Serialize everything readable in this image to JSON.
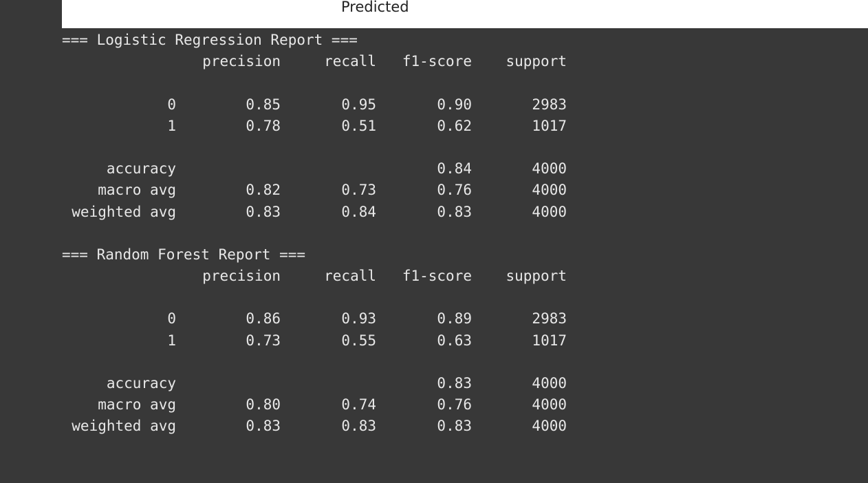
{
  "plot": {
    "axis_label": "Predicted"
  },
  "columns": {
    "precision": "precision",
    "recall": "recall",
    "f1": "f1-score",
    "support": "support"
  },
  "reports": [
    {
      "title": "=== Logistic Regression Report ===",
      "classes": [
        {
          "label": "0",
          "precision": "0.85",
          "recall": "0.95",
          "f1": "0.90",
          "support": "2983"
        },
        {
          "label": "1",
          "precision": "0.78",
          "recall": "0.51",
          "f1": "0.62",
          "support": "1017"
        }
      ],
      "accuracy": {
        "label": "accuracy",
        "f1": "0.84",
        "support": "4000"
      },
      "macro": {
        "label": "macro avg",
        "precision": "0.82",
        "recall": "0.73",
        "f1": "0.76",
        "support": "4000"
      },
      "weighted": {
        "label": "weighted avg",
        "precision": "0.83",
        "recall": "0.84",
        "f1": "0.83",
        "support": "4000"
      }
    },
    {
      "title": "=== Random Forest Report ===",
      "classes": [
        {
          "label": "0",
          "precision": "0.86",
          "recall": "0.93",
          "f1": "0.89",
          "support": "2983"
        },
        {
          "label": "1",
          "precision": "0.73",
          "recall": "0.55",
          "f1": "0.63",
          "support": "1017"
        }
      ],
      "accuracy": {
        "label": "accuracy",
        "f1": "0.83",
        "support": "4000"
      },
      "macro": {
        "label": "macro avg",
        "precision": "0.80",
        "recall": "0.74",
        "f1": "0.76",
        "support": "4000"
      },
      "weighted": {
        "label": "weighted avg",
        "precision": "0.83",
        "recall": "0.83",
        "f1": "0.83",
        "support": "4000"
      }
    }
  ]
}
